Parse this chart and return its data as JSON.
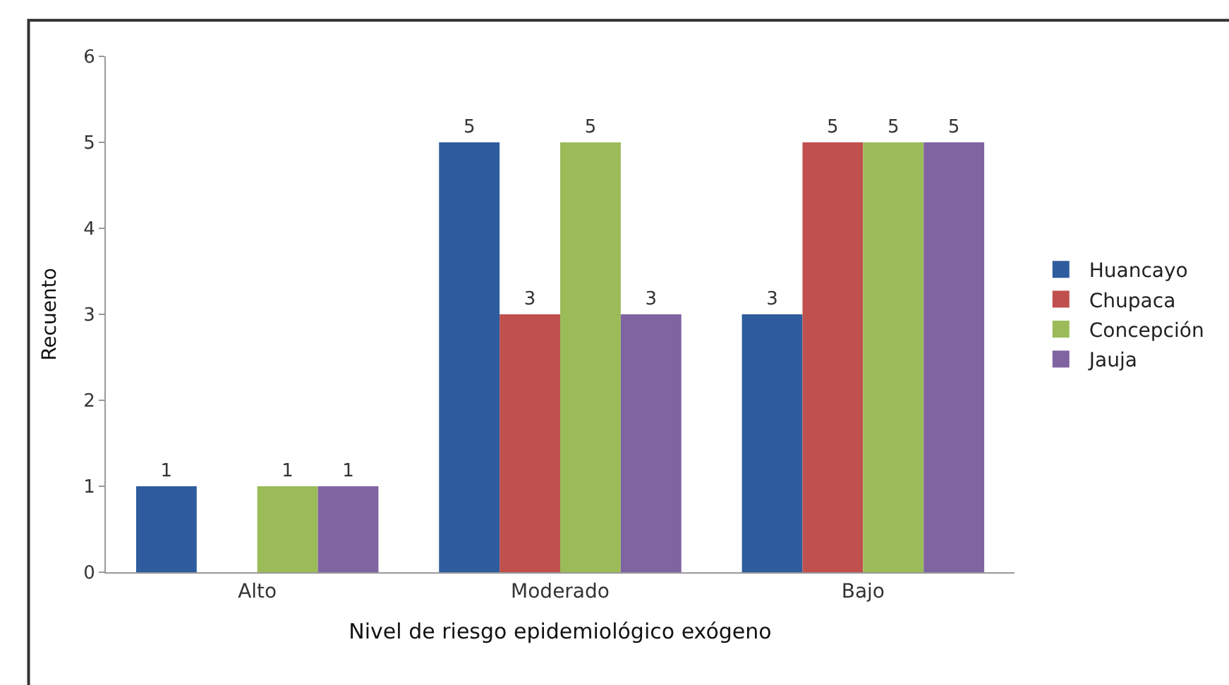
{
  "chart_data": {
    "type": "bar",
    "xlabel": "Nivel de riesgo epidemiológico exógeno",
    "ylabel": "Recuento",
    "categories": [
      "Alto",
      "Moderado",
      "Bajo"
    ],
    "series": [
      {
        "name": "Huancayo",
        "color": "#2e5c9e",
        "values": [
          1,
          5,
          3
        ]
      },
      {
        "name": "Chupaca",
        "color": "#c0504d",
        "values": [
          null,
          3,
          5
        ]
      },
      {
        "name": "Concepción",
        "color": "#9bbb59",
        "values": [
          1,
          5,
          5
        ]
      },
      {
        "name": "Jauja",
        "color": "#8064a2",
        "values": [
          1,
          3,
          5
        ]
      }
    ],
    "ylim": [
      0,
      6
    ],
    "yticks": [
      0,
      1,
      2,
      3,
      4,
      5,
      6
    ],
    "data_labels": true,
    "legend": "right"
  }
}
